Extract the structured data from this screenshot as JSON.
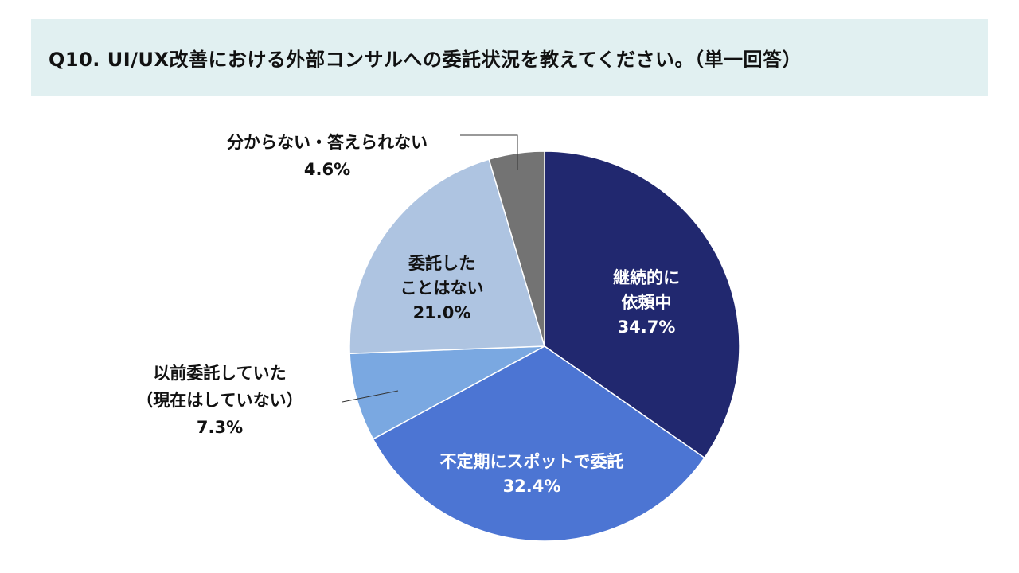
{
  "question": {
    "text": "Q10. UI/UX改善における外部コンサルへの委託状況を教えてください。（単一回答）"
  },
  "chart_data": {
    "type": "pie",
    "title": "",
    "slices": [
      {
        "label_lines": [
          "継続的に",
          "依頼中"
        ],
        "value": 34.7,
        "value_label": "34.7%",
        "color": "#21286f",
        "label_color": "#ffffff"
      },
      {
        "label_lines": [
          "不定期にスポットで委託"
        ],
        "value": 32.4,
        "value_label": "32.4%",
        "color": "#4c75d3",
        "label_color": "#ffffff"
      },
      {
        "label_lines": [
          "以前委託していた",
          "（現在はしていない）"
        ],
        "value": 7.3,
        "value_label": "7.3%",
        "color": "#7aa8e1",
        "label_color": "#111111"
      },
      {
        "label_lines": [
          "委託した",
          "ことはない"
        ],
        "value": 21.0,
        "value_label": "21.0%",
        "color": "#aec4e1",
        "label_color": "#111111"
      },
      {
        "label_lines": [
          "分からない・答えられない"
        ],
        "value": 4.6,
        "value_label": "4.6%",
        "color": "#737373",
        "label_color": "#111111"
      }
    ],
    "start": "12 o'clock",
    "direction": "clockwise",
    "legend": "none"
  }
}
